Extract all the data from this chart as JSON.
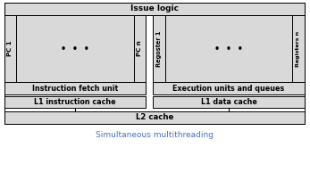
{
  "title": "Simultaneous multithreading",
  "title_color": "#4472c4",
  "issue_logic_label": "Issue logic",
  "pc1_label": "PC 1",
  "pcn_label": "PC n",
  "reg1_label": "Regoster 1",
  "regn_label": "Registers n",
  "fetch_label": "Instruction fetch unit",
  "exec_label": "Execution units and queues",
  "l1i_label": "L1 instruction cache",
  "l1d_label": "L1 data cache",
  "l2_label": "L2 cache",
  "bg_color": "#d9d9d9",
  "ec_color": "#000000",
  "title_fontsize": 6.5,
  "label_fontsize": 5.8,
  "small_fontsize": 5.2,
  "dots": "•  •  •"
}
